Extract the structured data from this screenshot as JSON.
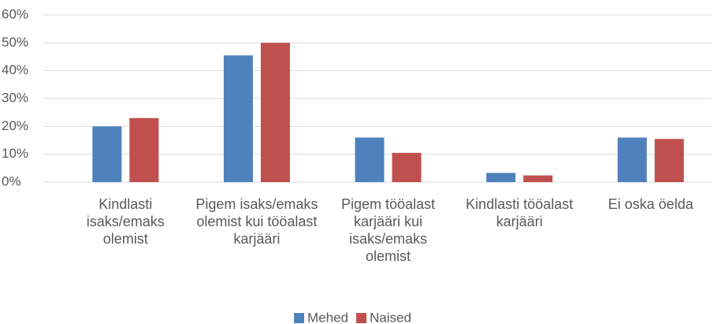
{
  "chart_data": {
    "type": "bar",
    "categories": [
      "Kindlasti isaks/emaks olemist",
      "Pigem isaks/emaks olemist kui tööalast karjääri",
      "Pigem tööalast karjääri kui isaks/emaks olemist",
      "Kindlasti tööalast karjääri",
      "Ei oska öelda"
    ],
    "series": [
      {
        "name": "Mehed",
        "color": "#4f81bd",
        "values": [
          20,
          45.5,
          16,
          3.3,
          16
        ]
      },
      {
        "name": "Naised",
        "color": "#c0504d",
        "values": [
          23,
          50,
          10.5,
          2.4,
          15.5
        ]
      }
    ],
    "ylim": [
      0,
      60
    ],
    "yticks": [
      {
        "value": 0,
        "label": "0%"
      },
      {
        "value": 10,
        "label": "10%"
      },
      {
        "value": 20,
        "label": "20%"
      },
      {
        "value": 30,
        "label": "30%"
      },
      {
        "value": 40,
        "label": "40%"
      },
      {
        "value": 50,
        "label": "50%"
      },
      {
        "value": 60,
        "label": "60%"
      }
    ],
    "grid": true,
    "legend": "bottom"
  }
}
